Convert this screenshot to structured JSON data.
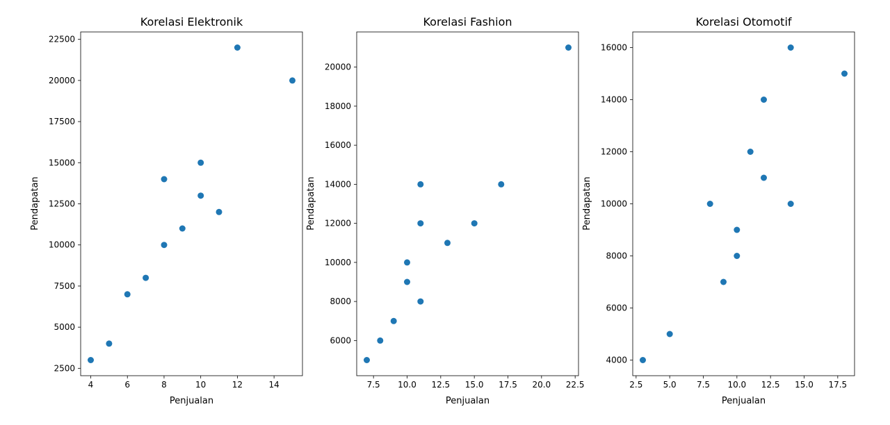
{
  "colors": {
    "marker": "#1f77b4",
    "axis": "#000000",
    "background": "#ffffff"
  },
  "chart_data": [
    {
      "type": "scatter",
      "title": "Korelasi Elektronik",
      "xlabel": "Penjualan",
      "ylabel": "Pendapatan",
      "xlim": [
        3.45,
        15.55
      ],
      "ylim": [
        2050,
        22950
      ],
      "xticks": [
        4,
        6,
        8,
        10,
        12,
        14
      ],
      "xtick_labels": [
        "4",
        "6",
        "8",
        "10",
        "12",
        "14"
      ],
      "yticks": [
        2500,
        5000,
        7500,
        10000,
        12500,
        15000,
        17500,
        20000,
        22500
      ],
      "ytick_labels": [
        "2500",
        "5000",
        "7500",
        "10000",
        "12500",
        "15000",
        "17500",
        "20000",
        "22500"
      ],
      "grid": false,
      "points": [
        {
          "x": 4,
          "y": 3000
        },
        {
          "x": 5,
          "y": 4000
        },
        {
          "x": 6,
          "y": 7000
        },
        {
          "x": 7,
          "y": 8000
        },
        {
          "x": 8,
          "y": 10000
        },
        {
          "x": 8,
          "y": 14000
        },
        {
          "x": 9,
          "y": 11000
        },
        {
          "x": 10,
          "y": 13000
        },
        {
          "x": 10,
          "y": 15000
        },
        {
          "x": 11,
          "y": 12000
        },
        {
          "x": 12,
          "y": 22000
        },
        {
          "x": 15,
          "y": 20000
        }
      ]
    },
    {
      "type": "scatter",
      "title": "Korelasi Fashion",
      "xlabel": "Penjualan",
      "ylabel": "Pendapatan",
      "xlim": [
        6.25,
        22.75
      ],
      "ylim": [
        4200,
        21800
      ],
      "xticks": [
        7.5,
        10.0,
        12.5,
        15.0,
        17.5,
        20.0,
        22.5
      ],
      "xtick_labels": [
        "7.5",
        "10.0",
        "12.5",
        "15.0",
        "17.5",
        "20.0",
        "22.5"
      ],
      "yticks": [
        6000,
        8000,
        10000,
        12000,
        14000,
        16000,
        18000,
        20000
      ],
      "ytick_labels": [
        "6000",
        "8000",
        "10000",
        "12000",
        "14000",
        "16000",
        "18000",
        "20000"
      ],
      "grid": false,
      "points": [
        {
          "x": 7,
          "y": 5000
        },
        {
          "x": 8,
          "y": 6000
        },
        {
          "x": 9,
          "y": 7000
        },
        {
          "x": 10,
          "y": 9000
        },
        {
          "x": 10,
          "y": 10000
        },
        {
          "x": 11,
          "y": 8000
        },
        {
          "x": 11,
          "y": 12000
        },
        {
          "x": 11,
          "y": 14000
        },
        {
          "x": 13,
          "y": 11000
        },
        {
          "x": 15,
          "y": 12000
        },
        {
          "x": 17,
          "y": 14000
        },
        {
          "x": 22,
          "y": 21000
        }
      ]
    },
    {
      "type": "scatter",
      "title": "Korelasi Otomotif",
      "xlabel": "Penjualan",
      "ylabel": "Pendapatan",
      "xlim": [
        2.25,
        18.75
      ],
      "ylim": [
        3400,
        16600
      ],
      "xticks": [
        2.5,
        5.0,
        7.5,
        10.0,
        12.5,
        15.0,
        17.5
      ],
      "xtick_labels": [
        "2.5",
        "5.0",
        "7.5",
        "10.0",
        "12.5",
        "15.0",
        "17.5"
      ],
      "yticks": [
        4000,
        6000,
        8000,
        10000,
        12000,
        14000,
        16000
      ],
      "ytick_labels": [
        "4000",
        "6000",
        "8000",
        "10000",
        "12000",
        "14000",
        "16000"
      ],
      "grid": false,
      "points": [
        {
          "x": 3,
          "y": 4000
        },
        {
          "x": 5,
          "y": 5000
        },
        {
          "x": 8,
          "y": 10000
        },
        {
          "x": 9,
          "y": 7000
        },
        {
          "x": 10,
          "y": 8000
        },
        {
          "x": 10,
          "y": 9000
        },
        {
          "x": 11,
          "y": 12000
        },
        {
          "x": 12,
          "y": 11000
        },
        {
          "x": 12,
          "y": 14000
        },
        {
          "x": 14,
          "y": 10000
        },
        {
          "x": 14,
          "y": 16000
        },
        {
          "x": 18,
          "y": 15000
        }
      ]
    }
  ]
}
